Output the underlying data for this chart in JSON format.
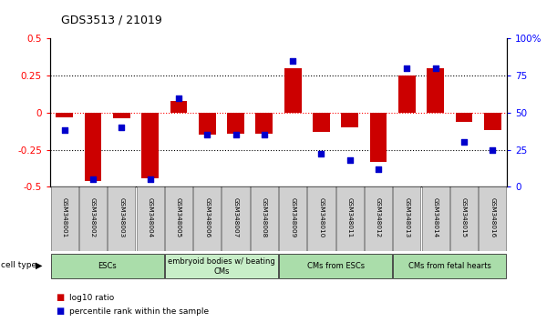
{
  "title": "GDS3513 / 21019",
  "samples": [
    "GSM348001",
    "GSM348002",
    "GSM348003",
    "GSM348004",
    "GSM348005",
    "GSM348006",
    "GSM348007",
    "GSM348008",
    "GSM348009",
    "GSM348010",
    "GSM348011",
    "GSM348012",
    "GSM348013",
    "GSM348014",
    "GSM348015",
    "GSM348016"
  ],
  "log10_ratio": [
    -0.03,
    -0.46,
    -0.04,
    -0.44,
    0.08,
    -0.15,
    -0.14,
    -0.14,
    0.3,
    -0.13,
    -0.1,
    -0.33,
    0.25,
    0.3,
    -0.06,
    -0.12
  ],
  "percentile_rank": [
    38,
    5,
    40,
    5,
    60,
    35,
    35,
    35,
    85,
    22,
    18,
    12,
    80,
    80,
    30,
    25
  ],
  "cell_types": [
    {
      "label": "ESCs",
      "start": 0,
      "end": 3,
      "color": "#aaddaa"
    },
    {
      "label": "embryoid bodies w/ beating\nCMs",
      "start": 4,
      "end": 7,
      "color": "#c8eec8"
    },
    {
      "label": "CMs from ESCs",
      "start": 8,
      "end": 11,
      "color": "#aaddaa"
    },
    {
      "label": "CMs from fetal hearts",
      "start": 12,
      "end": 15,
      "color": "#aaddaa"
    }
  ],
  "bar_color": "#cc0000",
  "dot_color": "#0000cc",
  "ylim_left": [
    -0.5,
    0.5
  ],
  "ylim_right": [
    0,
    100
  ],
  "left_ticks": [
    -0.5,
    -0.25,
    0,
    0.25,
    0.5
  ],
  "right_ticks": [
    0,
    25,
    50,
    75,
    100
  ],
  "legend_red": "log10 ratio",
  "legend_blue": "percentile rank within the sample",
  "bg_color": "#ffffff"
}
